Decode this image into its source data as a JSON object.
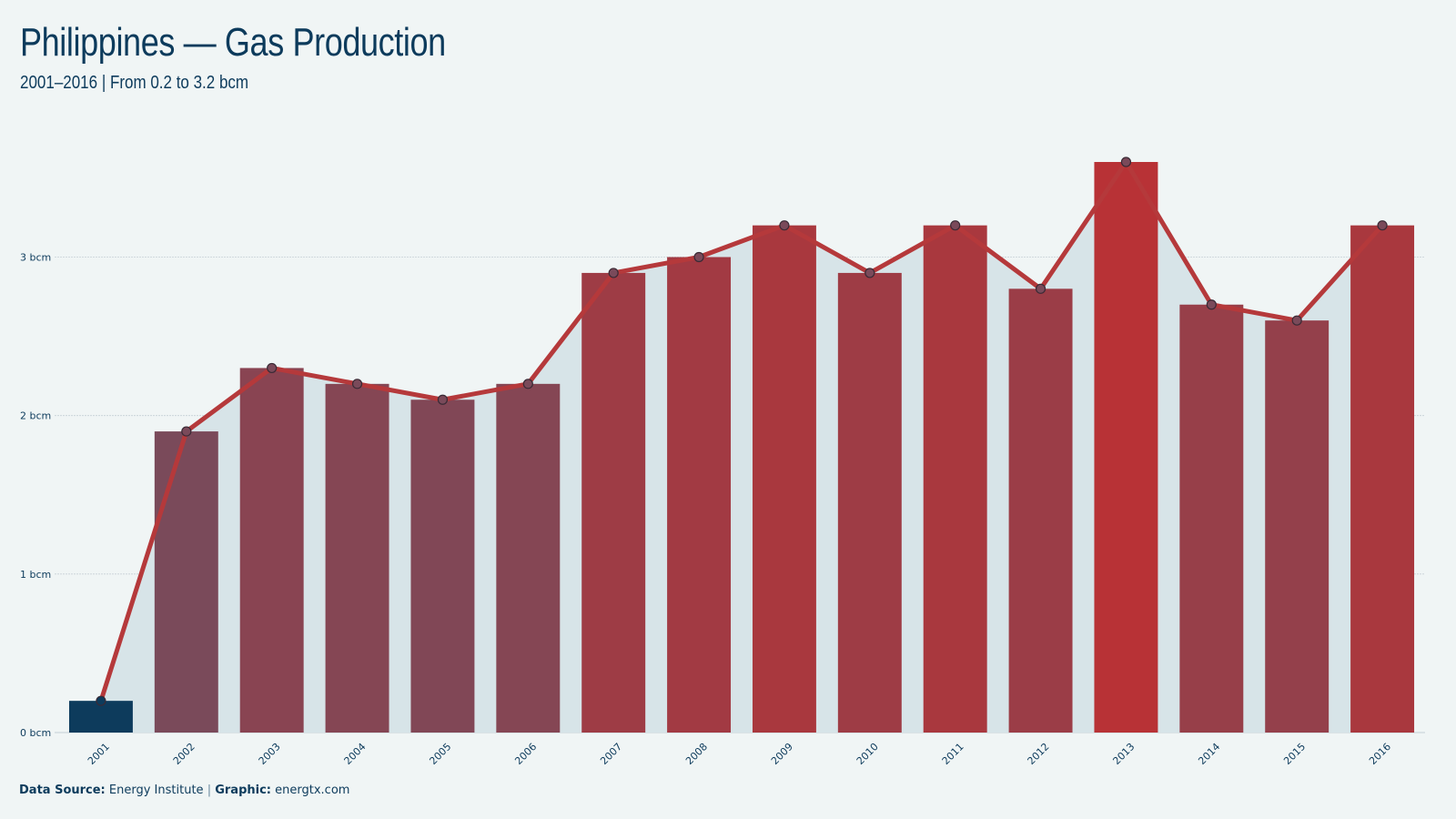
{
  "header": {
    "title": "Philippines — Gas Production",
    "subtitle": "2001–2016 | From 0.2 to 3.2 bcm"
  },
  "footer": {
    "source_label": "Data Source:",
    "source_value": "Energy Institute",
    "separator": "|",
    "graphic_label": "Graphic:",
    "graphic_value": "energtx.com"
  },
  "colors": {
    "background": "#f0f5f5",
    "area_fill": "#d7e4e8",
    "line": "#b5393b",
    "first_bar": "#0d3b5c",
    "bar_low": "#7a4a5a",
    "bar_high": "#b83236",
    "text": "#0d3b5c",
    "grid": "#c5d0d5"
  },
  "chart_data": {
    "type": "bar",
    "categories": [
      "2001",
      "2002",
      "2003",
      "2004",
      "2005",
      "2006",
      "2007",
      "2008",
      "2009",
      "2010",
      "2011",
      "2012",
      "2013",
      "2014",
      "2015",
      "2016"
    ],
    "values": [
      0.2,
      1.9,
      2.3,
      2.2,
      2.1,
      2.2,
      2.9,
      3.0,
      3.2,
      2.9,
      3.2,
      2.8,
      3.6,
      2.7,
      2.6,
      3.2
    ],
    "overlay": "line-with-markers-and-area",
    "y_ticks": [
      0,
      1,
      2,
      3
    ],
    "y_tick_labels": [
      "0 bcm",
      "1 bcm",
      "2 bcm",
      "3 bcm"
    ],
    "ylim": [
      0,
      3.6
    ],
    "grid": true,
    "legend": "none",
    "xlabel": "",
    "ylabel": ""
  }
}
